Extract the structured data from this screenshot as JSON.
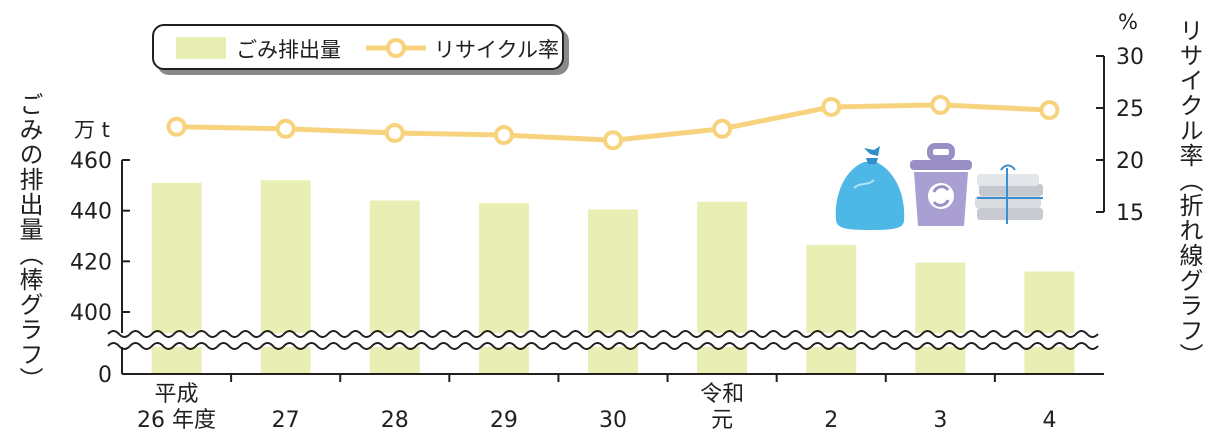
{
  "chart_data": {
    "type": "bar+line",
    "categories": [
      {
        "line1": "平成",
        "line2": "26 年度"
      },
      {
        "line1": "",
        "line2": "27"
      },
      {
        "line1": "",
        "line2": "28"
      },
      {
        "line1": "",
        "line2": "29"
      },
      {
        "line1": "",
        "line2": "30"
      },
      {
        "line1": "令和",
        "line2": "元"
      },
      {
        "line1": "",
        "line2": "2"
      },
      {
        "line1": "",
        "line2": "3"
      },
      {
        "line1": "",
        "line2": "4"
      }
    ],
    "series": [
      {
        "name": "ごみ排出量",
        "type": "bar",
        "axis": "left",
        "color": "#e9efb4",
        "values": [
          451,
          452,
          444,
          443,
          440.5,
          443.5,
          426.5,
          419.5,
          416
        ]
      },
      {
        "name": "リサイクル率",
        "type": "line",
        "axis": "right",
        "color": "#f7d37e",
        "values": [
          23.2,
          23.0,
          22.6,
          22.4,
          21.9,
          23.0,
          25.1,
          25.3,
          24.8
        ]
      }
    ],
    "left_axis": {
      "label": "ごみの排出量（棒グラフ）",
      "unit": "万 t",
      "ticks": [
        400,
        420,
        440,
        460
      ],
      "zero_tick": 0,
      "range": [
        390,
        460
      ],
      "broken": true
    },
    "right_axis": {
      "label": "リサイクル率（折れ線グラフ）",
      "unit": "%",
      "ticks": [
        15,
        20,
        25,
        30
      ],
      "range": [
        15,
        30
      ]
    },
    "legend_position": "top-left"
  }
}
